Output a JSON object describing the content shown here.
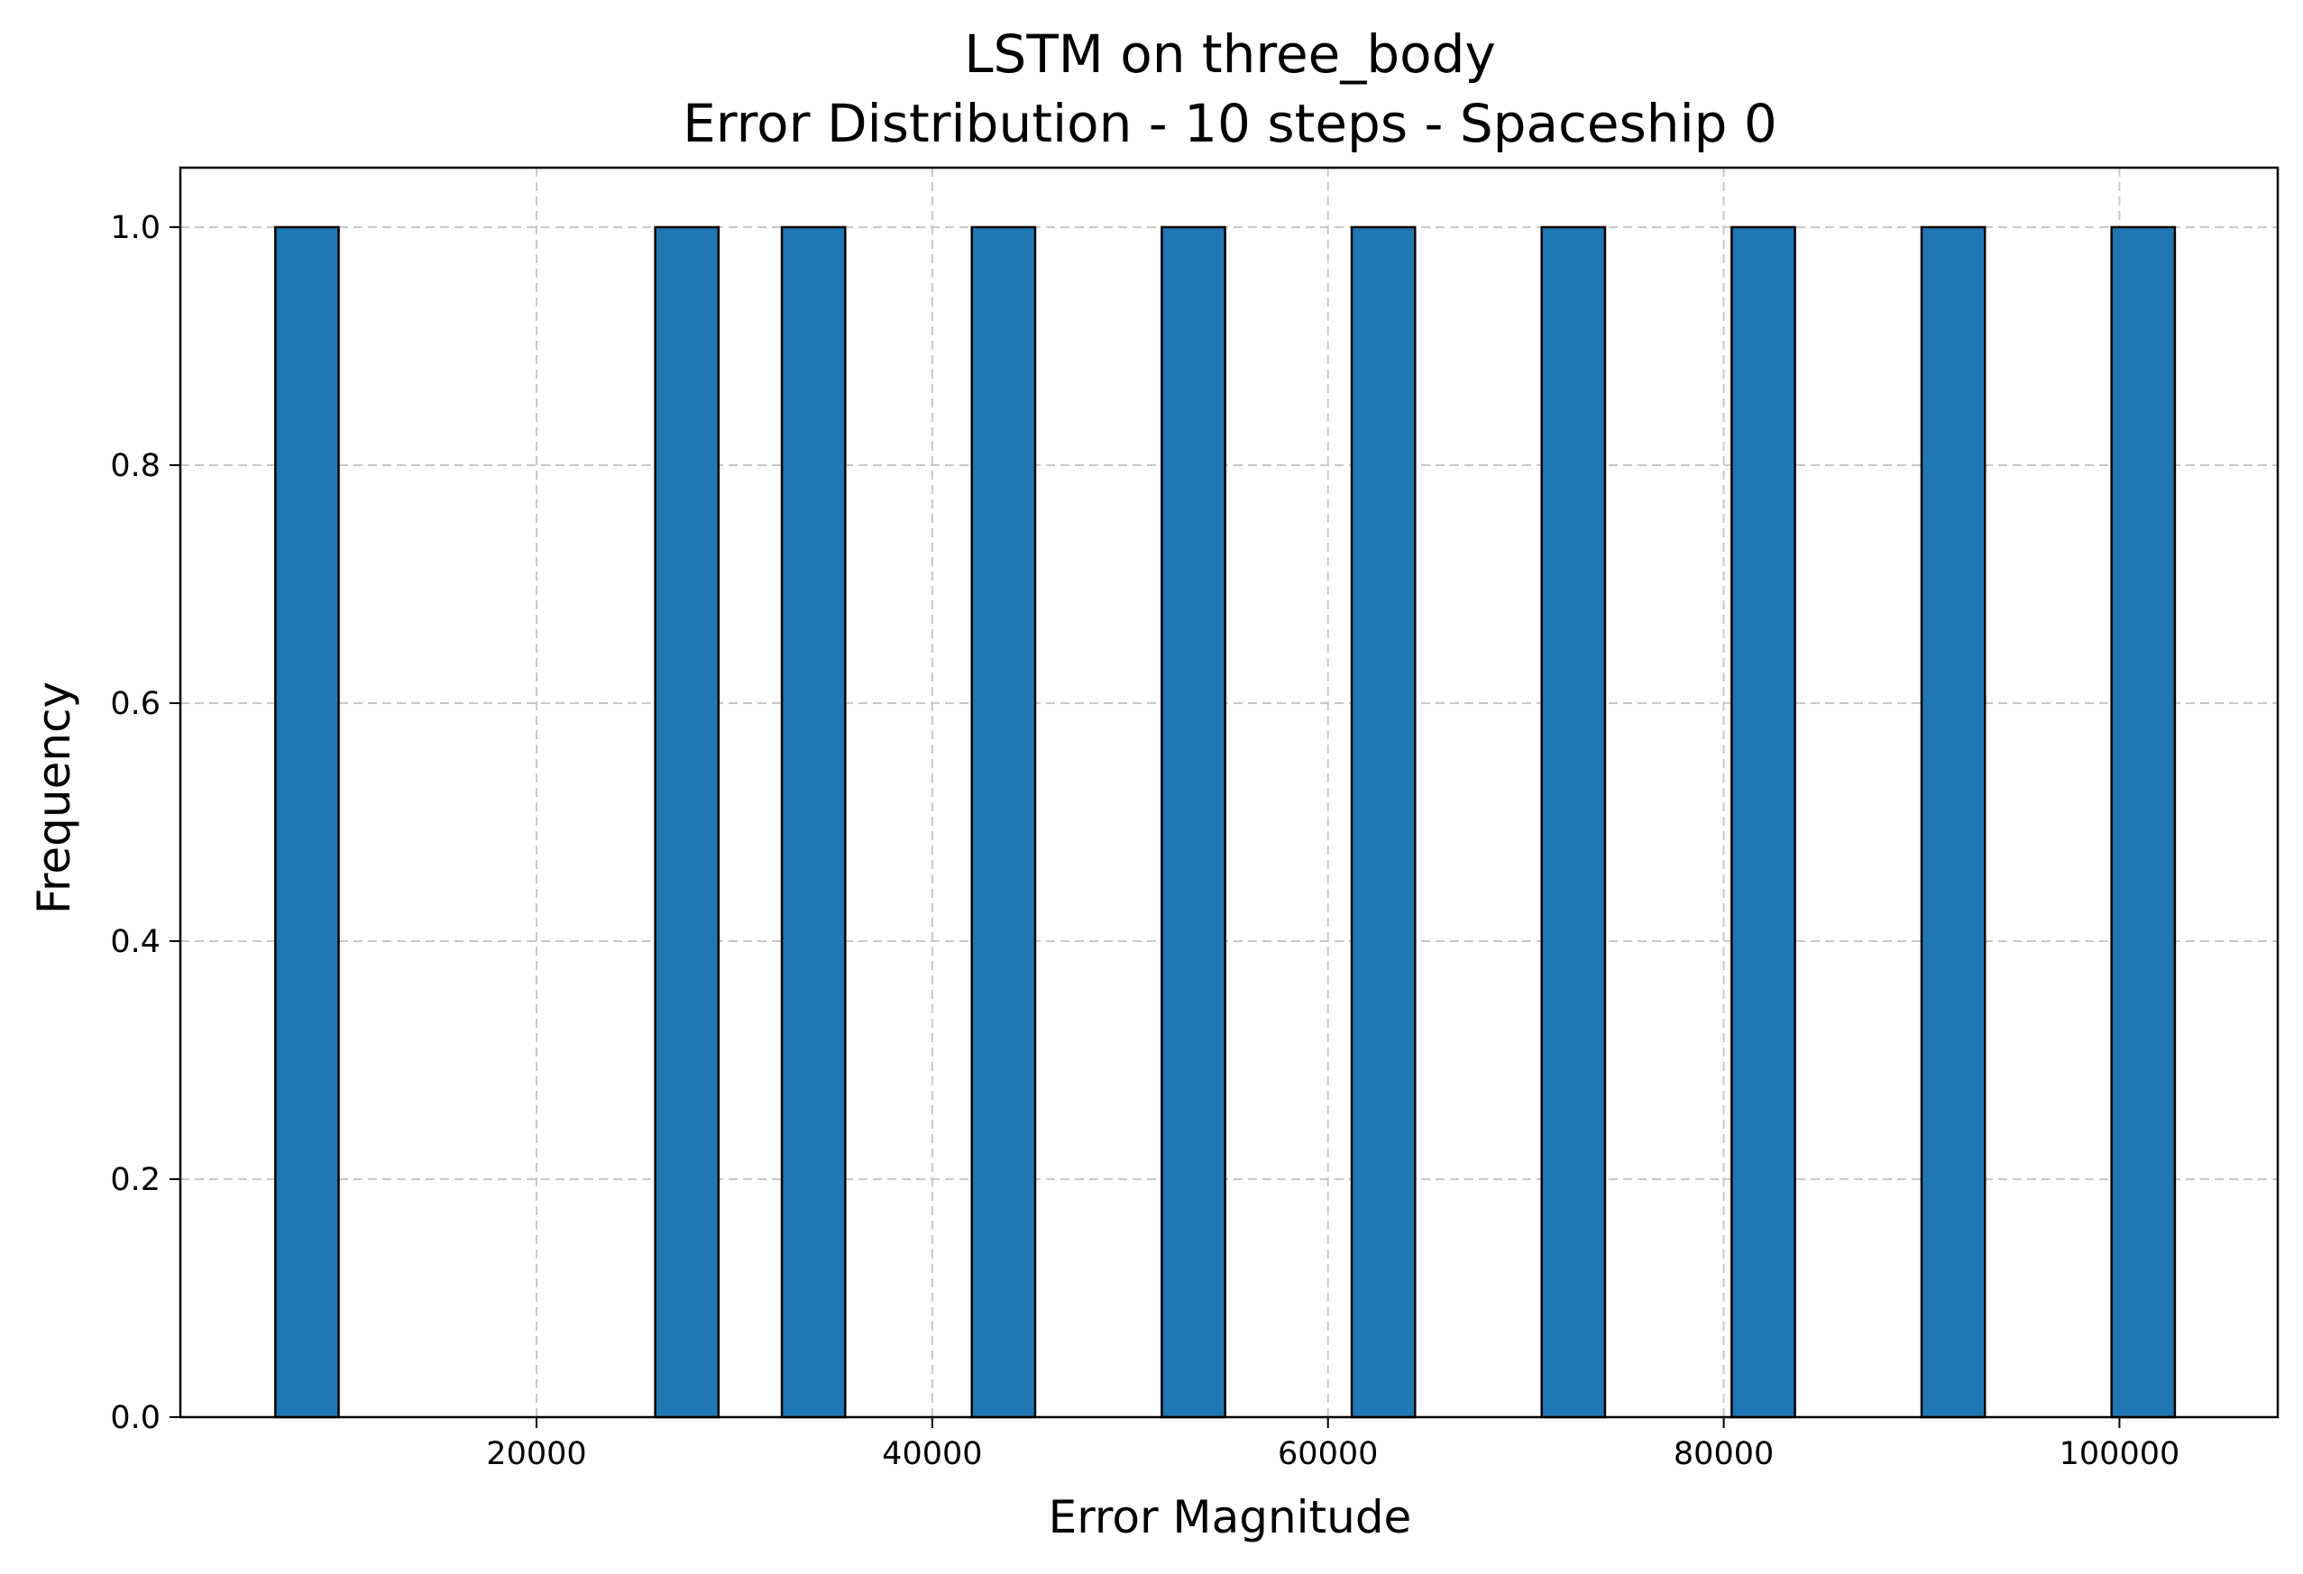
{
  "chart_data": {
    "type": "bar",
    "title": "LSTM on three_body",
    "subtitle": "Error Distribution - 10 steps - Spaceship 0",
    "xlabel": "Error Magnitude",
    "ylabel": "Frequency",
    "xlim": [
      2000,
      108000
    ],
    "ylim": [
      0,
      1.05
    ],
    "xticks": [
      20000,
      40000,
      60000,
      80000,
      100000
    ],
    "xtick_labels": [
      "20000",
      "40000",
      "60000",
      "80000",
      "100000"
    ],
    "yticks": [
      0.0,
      0.2,
      0.4,
      0.6,
      0.8,
      1.0
    ],
    "ytick_labels": [
      "0.0",
      "0.2",
      "0.4",
      "0.6",
      "0.8",
      "1.0"
    ],
    "grid": true,
    "bin_width": 3200,
    "bins": [
      {
        "x_start": 6800,
        "count": 1
      },
      {
        "x_start": 26000,
        "count": 1
      },
      {
        "x_start": 32400,
        "count": 1
      },
      {
        "x_start": 42000,
        "count": 1
      },
      {
        "x_start": 51600,
        "count": 1
      },
      {
        "x_start": 61200,
        "count": 1
      },
      {
        "x_start": 70800,
        "count": 1
      },
      {
        "x_start": 80400,
        "count": 1
      },
      {
        "x_start": 90000,
        "count": 1
      },
      {
        "x_start": 99600,
        "count": 1
      }
    ],
    "bar_color": "#1f77b4",
    "edge_color": "#000000"
  }
}
